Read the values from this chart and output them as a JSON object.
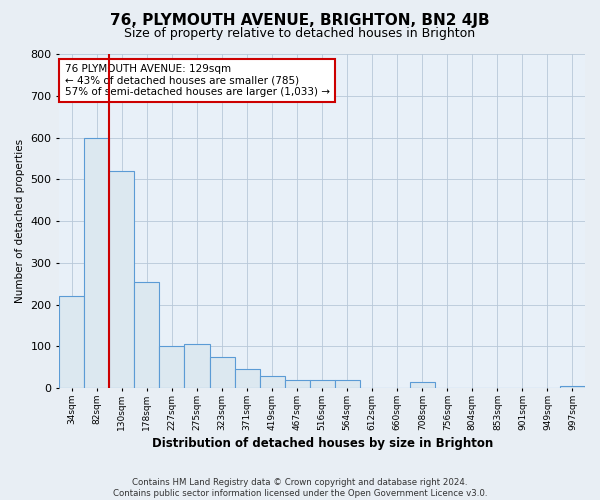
{
  "title": "76, PLYMOUTH AVENUE, BRIGHTON, BN2 4JB",
  "subtitle": "Size of property relative to detached houses in Brighton",
  "xlabel": "Distribution of detached houses by size in Brighton",
  "ylabel": "Number of detached properties",
  "categories": [
    "34sqm",
    "82sqm",
    "130sqm",
    "178sqm",
    "227sqm",
    "275sqm",
    "323sqm",
    "371sqm",
    "419sqm",
    "467sqm",
    "516sqm",
    "564sqm",
    "612sqm",
    "660sqm",
    "708sqm",
    "756sqm",
    "804sqm",
    "853sqm",
    "901sqm",
    "949sqm",
    "997sqm"
  ],
  "values": [
    220,
    600,
    520,
    255,
    100,
    105,
    75,
    45,
    30,
    20,
    20,
    20,
    0,
    0,
    15,
    0,
    0,
    0,
    0,
    0,
    5
  ],
  "bar_fill_color": "#dce8f0",
  "bar_edge_color": "#5b9bd5",
  "marker_color": "#cc0000",
  "marker_bar_index": 2,
  "annotation_text": "76 PLYMOUTH AVENUE: 129sqm\n← 43% of detached houses are smaller (785)\n57% of semi-detached houses are larger (1,033) →",
  "annotation_box_color": "#ffffff",
  "annotation_box_edgecolor": "#cc0000",
  "ylim": [
    0,
    800
  ],
  "yticks": [
    0,
    100,
    200,
    300,
    400,
    500,
    600,
    700,
    800
  ],
  "footnote": "Contains HM Land Registry data © Crown copyright and database right 2024.\nContains public sector information licensed under the Open Government Licence v3.0.",
  "background_color": "#e8eef4",
  "plot_background_color": "#e8f0f8",
  "grid_color": "#b8c8d8",
  "title_fontsize": 11,
  "subtitle_fontsize": 9
}
